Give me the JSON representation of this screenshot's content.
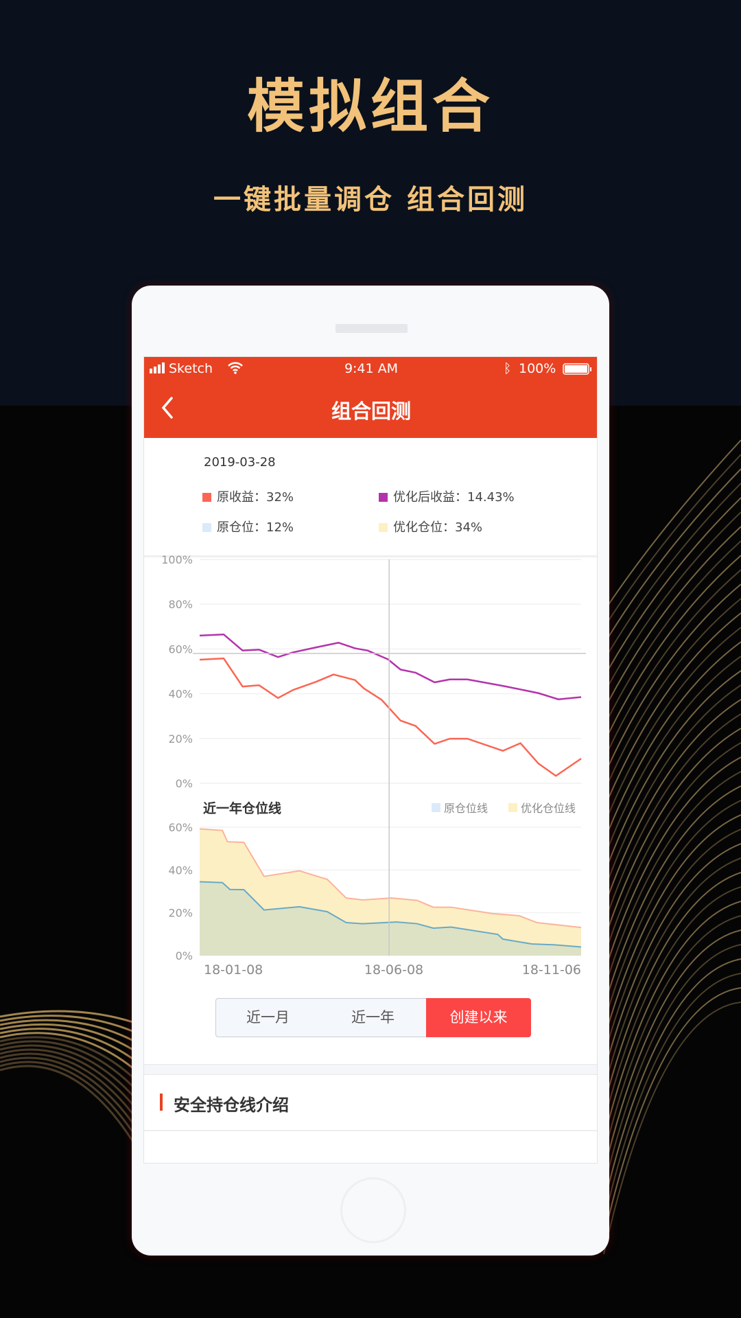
{
  "hero": {
    "title": "模拟组合",
    "subtitle": "一键批量调仓 组合回测"
  },
  "status_bar": {
    "carrier": "Sketch",
    "time": "9:41 AM",
    "battery": "100%"
  },
  "nav": {
    "title": "组合回测",
    "back_icon": "chevron-left-icon"
  },
  "info": {
    "date": "2019-03-28",
    "items": [
      {
        "label": "原收益：32%",
        "color": "#fa6653"
      },
      {
        "label": "优化后收益：14.43%",
        "color": "#b433ad"
      },
      {
        "label": "原仓位：12%",
        "color": "#dbeafb"
      },
      {
        "label": "优化仓位：34%",
        "color": "#fdf0c2"
      }
    ]
  },
  "chart_data": [
    {
      "type": "line",
      "xlim": [
        "2018-01-08",
        "2018-11-06"
      ],
      "ylim": [
        0,
        100
      ],
      "yticks": [
        "0%",
        "20%",
        "40%",
        "60%",
        "80%",
        "100%"
      ],
      "grid": true,
      "crosshair": {
        "x": "2018-06-07",
        "y": 58
      },
      "series": [
        {
          "color": "#b433ad",
          "points": [
            [
              "2018-01-08",
              66.0
            ],
            [
              "2018-01-27",
              66.5
            ],
            [
              "2018-02-11",
              59.3
            ],
            [
              "2018-02-24",
              59.7
            ],
            [
              "2018-03-11",
              56.4
            ],
            [
              "2018-03-23",
              58.5
            ],
            [
              "2018-04-10",
              60.7
            ],
            [
              "2018-04-28",
              62.8
            ],
            [
              "2018-05-11",
              60.3
            ],
            [
              "2018-05-21",
              59.3
            ],
            [
              "2018-06-06",
              55.4
            ],
            [
              "2018-06-16",
              50.8
            ],
            [
              "2018-06-28",
              49.4
            ],
            [
              "2018-07-13",
              45.1
            ],
            [
              "2018-07-25",
              46.4
            ],
            [
              "2018-08-08",
              46.4
            ],
            [
              "2018-09-06",
              43.4
            ],
            [
              "2018-10-03",
              40.3
            ],
            [
              "2018-10-19",
              37.5
            ],
            [
              "2018-11-06",
              38.5
            ]
          ]
        },
        {
          "color": "#fa6653",
          "points": [
            [
              "2018-01-08",
              55.2
            ],
            [
              "2018-01-27",
              55.8
            ],
            [
              "2018-02-11",
              43.2
            ],
            [
              "2018-02-24",
              43.8
            ],
            [
              "2018-03-11",
              38.1
            ],
            [
              "2018-03-23",
              41.7
            ],
            [
              "2018-04-10",
              45.3
            ],
            [
              "2018-04-24",
              48.6
            ],
            [
              "2018-05-11",
              46.1
            ],
            [
              "2018-05-18",
              42.4
            ],
            [
              "2018-06-01",
              37.3
            ],
            [
              "2018-06-16",
              28.0
            ],
            [
              "2018-06-28",
              25.6
            ],
            [
              "2018-07-13",
              17.6
            ],
            [
              "2018-07-25",
              19.9
            ],
            [
              "2018-08-08",
              19.9
            ],
            [
              "2018-09-05",
              14.5
            ],
            [
              "2018-09-19",
              17.9
            ],
            [
              "2018-10-03",
              8.9
            ],
            [
              "2018-10-17",
              3.3
            ],
            [
              "2018-11-06",
              11.0
            ]
          ]
        }
      ]
    },
    {
      "type": "area",
      "title": "近一年仓位线",
      "xlim": [
        "2018-01-08",
        "2018-11-06"
      ],
      "ylim": [
        0,
        60
      ],
      "yticks": [
        "0%",
        "20%",
        "40%",
        "60%"
      ],
      "xticks": [
        "18-01-08",
        "18-06-08",
        "18-11-06"
      ],
      "grid": true,
      "legend_position": "top-right",
      "series": [
        {
          "name": "原仓位线",
          "color": "#dbeafb",
          "line": "#6aa9c6",
          "fill": "#dde2c5",
          "points": [
            [
              "2018-01-08",
              34.5
            ],
            [
              "2018-01-26",
              34.1
            ],
            [
              "2018-02-01",
              30.9
            ],
            [
              "2018-02-12",
              30.8
            ],
            [
              "2018-02-28",
              21.3
            ],
            [
              "2018-03-28",
              22.8
            ],
            [
              "2018-04-19",
              20.5
            ],
            [
              "2018-05-04",
              15.4
            ],
            [
              "2018-05-17",
              14.9
            ],
            [
              "2018-06-13",
              15.7
            ],
            [
              "2018-06-29",
              14.9
            ],
            [
              "2018-07-12",
              12.8
            ],
            [
              "2018-07-26",
              13.3
            ],
            [
              "2018-09-01",
              9.9
            ],
            [
              "2018-09-05",
              7.7
            ],
            [
              "2018-09-28",
              5.4
            ],
            [
              "2018-10-16",
              5.0
            ],
            [
              "2018-11-06",
              4.0
            ]
          ]
        },
        {
          "name": "优化仓位线",
          "color": "#fdf0c2",
          "line": "#fbb39a",
          "fill": "#fdefc4",
          "points": [
            [
              "2018-01-08",
              59.2
            ],
            [
              "2018-01-26",
              58.5
            ],
            [
              "2018-01-30",
              53.2
            ],
            [
              "2018-02-12",
              52.9
            ],
            [
              "2018-02-28",
              37.0
            ],
            [
              "2018-03-28",
              39.6
            ],
            [
              "2018-04-19",
              35.6
            ],
            [
              "2018-05-04",
              26.9
            ],
            [
              "2018-05-17",
              26.0
            ],
            [
              "2018-06-09",
              26.9
            ],
            [
              "2018-06-29",
              25.8
            ],
            [
              "2018-07-12",
              22.6
            ],
            [
              "2018-07-26",
              22.6
            ],
            [
              "2018-08-28",
              19.6
            ],
            [
              "2018-09-18",
              18.6
            ],
            [
              "2018-10-02",
              15.4
            ],
            [
              "2018-11-06",
              13.1
            ]
          ]
        }
      ]
    }
  ],
  "range_tabs": {
    "items": [
      "近一月",
      "近一年",
      "创建以来"
    ],
    "active": 2,
    "active_color": "#fc4646"
  },
  "section": {
    "title": "安全持仓线介绍",
    "accent": "#e84223"
  }
}
